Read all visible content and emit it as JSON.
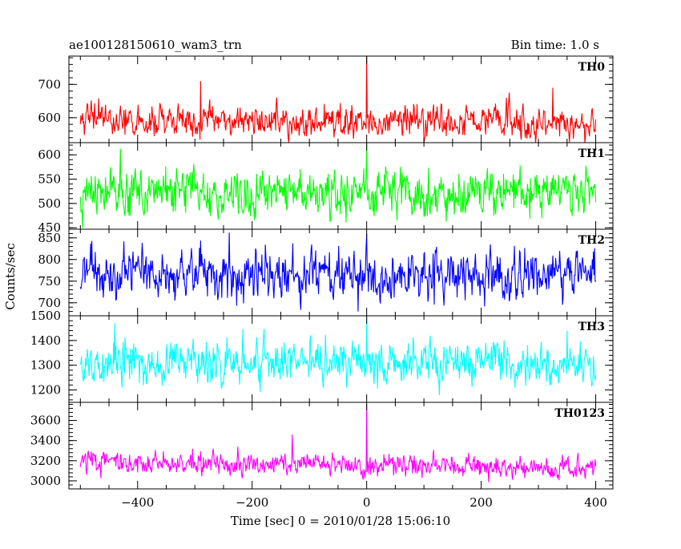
{
  "chart_data": {
    "type": "line",
    "title": "ae100128150610_wam3_trn",
    "bin_time_label": "Bin time: 1.0 s",
    "xlabel": "Time [sec] 0 = 2010/01/28 15:06:10",
    "ylabel": "Counts/sec",
    "xlim": [
      -520,
      430
    ],
    "x_ticks": [
      -400,
      -200,
      0,
      200,
      400
    ],
    "x_tick_labels": [
      "−400",
      "−200",
      "0",
      "200",
      "400"
    ],
    "grid": false,
    "x_start": -500,
    "x_end": 400,
    "bin": 1.0,
    "panels": [
      {
        "name": "TH0",
        "color": "#ff0000",
        "ylim": [
          525,
          785
        ],
        "y_ticks": [
          600,
          700
        ],
        "y_tick_labels": [
          "600",
          "700"
        ],
        "mean": 590,
        "noise": 28,
        "spikes": [
          {
            "x": 0,
            "y": 790
          },
          {
            "x": -290,
            "y": 710
          },
          {
            "x": 325,
            "y": 690
          }
        ]
      },
      {
        "name": "TH1",
        "color": "#00ff00",
        "ylim": [
          447,
          625
        ],
        "y_ticks": [
          450,
          500,
          550,
          600
        ],
        "y_tick_labels": [
          "450",
          "500",
          "550",
          "600"
        ],
        "mean": 520,
        "noise": 26,
        "spikes": [
          {
            "x": 0,
            "y": 625
          },
          {
            "x": -430,
            "y": 612
          }
        ]
      },
      {
        "name": "TH2",
        "color": "#0000ff",
        "ylim": [
          670,
          870
        ],
        "y_ticks": [
          700,
          750,
          800,
          850
        ],
        "y_tick_labels": [
          "700",
          "750",
          "800",
          "850"
        ],
        "mean": 765,
        "noise": 32,
        "spikes": [
          {
            "x": 0,
            "y": 860
          },
          {
            "x": -240,
            "y": 862
          },
          {
            "x": -15,
            "y": 680
          }
        ]
      },
      {
        "name": "TH3",
        "color": "#00ffff",
        "ylim": [
          1150,
          1500
        ],
        "y_ticks": [
          1200,
          1300,
          1400,
          1500
        ],
        "y_tick_labels": [
          "1200",
          "1300",
          "1400",
          "1500"
        ],
        "mean": 1310,
        "noise": 50,
        "spikes": [
          {
            "x": 0,
            "y": 1500
          },
          {
            "x": -440,
            "y": 1470
          },
          {
            "x": 350,
            "y": 1440
          }
        ]
      },
      {
        "name": "TH0123",
        "color": "#ff00ff",
        "ylim": [
          2920,
          3780
        ],
        "y_ticks": [
          3000,
          3200,
          3400,
          3600
        ],
        "y_tick_labels": [
          "3000",
          "3200",
          "3400",
          "3600"
        ],
        "mean": 3190,
        "noise": 65,
        "trend": -70,
        "spikes": [
          {
            "x": 0,
            "y": 3760
          },
          {
            "x": -130,
            "y": 3460
          }
        ]
      }
    ]
  }
}
